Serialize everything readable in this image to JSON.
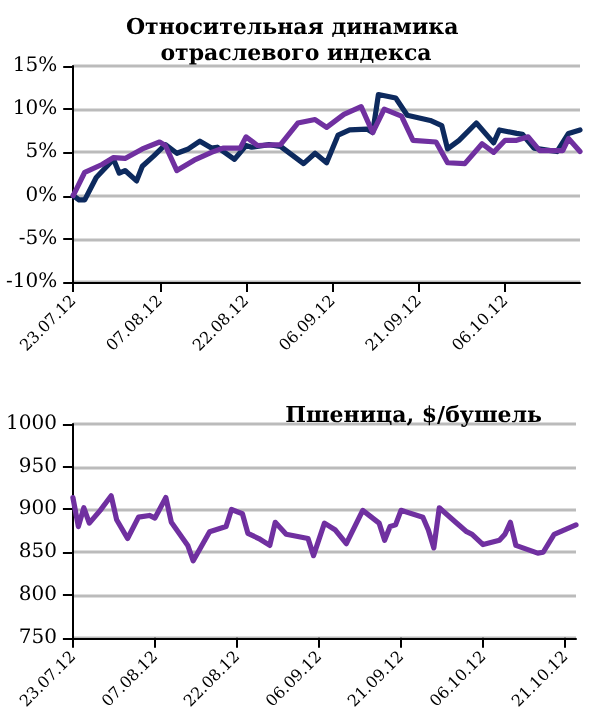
{
  "chart_data": [
    {
      "type": "line",
      "title": "Относительная динамика отраслевого индекса",
      "xlim": [
        "2012-07-23",
        "2012-10-19"
      ],
      "xticks": [
        {
          "value": "2012-07-23",
          "label": "23.07.12"
        },
        {
          "value": "2012-08-07",
          "label": "07.08.12"
        },
        {
          "value": "2012-08-22",
          "label": "22.08.12"
        },
        {
          "value": "2012-09-06",
          "label": "06.09.12"
        },
        {
          "value": "2012-09-21",
          "label": "21.09.12"
        },
        {
          "value": "2012-10-06",
          "label": "06.10.12"
        }
      ],
      "ylim": [
        -10,
        15
      ],
      "yticks": [
        {
          "value": -10,
          "label": "-10%"
        },
        {
          "value": -5,
          "label": "-5%"
        },
        {
          "value": 0,
          "label": "0%"
        },
        {
          "value": 5,
          "label": "5%"
        },
        {
          "value": 10,
          "label": "10%"
        },
        {
          "value": 15,
          "label": "15%"
        }
      ],
      "grid": "y",
      "marker": "none",
      "line_style": "solid",
      "series": [
        {
          "color": "#0d2a5e",
          "x": [
            "2012-07-23",
            "2012-07-24",
            "2012-07-25",
            "2012-07-27",
            "2012-07-30",
            "2012-07-31",
            "2012-08-01",
            "2012-08-03",
            "2012-08-04",
            "2012-08-06",
            "2012-08-08",
            "2012-08-10",
            "2012-08-12",
            "2012-08-14",
            "2012-08-16",
            "2012-08-17",
            "2012-08-20",
            "2012-08-22",
            "2012-08-23",
            "2012-08-26",
            "2012-08-28",
            "2012-09-01",
            "2012-09-03",
            "2012-09-05",
            "2012-09-07",
            "2012-09-09",
            "2012-09-12",
            "2012-09-13",
            "2012-09-14",
            "2012-09-17",
            "2012-09-19",
            "2012-09-23",
            "2012-09-25",
            "2012-09-26",
            "2012-09-28",
            "2012-10-01",
            "2012-10-04",
            "2012-10-05",
            "2012-10-08",
            "2012-10-09",
            "2012-10-11",
            "2012-10-13",
            "2012-10-15",
            "2012-10-17",
            "2012-10-19"
          ],
          "values": [
            0,
            -0.5,
            -0.5,
            2.1,
            4.2,
            2.6,
            2.9,
            1.7,
            3.4,
            4.6,
            5.9,
            4.9,
            5.4,
            6.3,
            5.5,
            5.6,
            4.2,
            5.8,
            5.6,
            5.9,
            5.7,
            3.7,
            4.9,
            3.8,
            7.0,
            7.6,
            7.7,
            7.3,
            11.7,
            11.3,
            9.3,
            8.7,
            8.1,
            5.4,
            6.4,
            8.4,
            6.1,
            7.6,
            7.2,
            7.1,
            5.5,
            5.3,
            5.1,
            7.2,
            7.6
          ]
        },
        {
          "color": "#7030a0",
          "x": [
            "2012-07-23",
            "2012-07-25",
            "2012-07-28",
            "2012-07-30",
            "2012-08-01",
            "2012-08-04",
            "2012-08-07",
            "2012-08-08",
            "2012-08-10",
            "2012-08-13",
            "2012-08-16",
            "2012-08-18",
            "2012-08-21",
            "2012-08-22",
            "2012-08-24",
            "2012-08-28",
            "2012-08-31",
            "2012-09-03",
            "2012-09-05",
            "2012-09-08",
            "2012-09-11",
            "2012-09-13",
            "2012-09-15",
            "2012-09-18",
            "2012-09-20",
            "2012-09-24",
            "2012-09-26",
            "2012-09-29",
            "2012-10-02",
            "2012-10-04",
            "2012-10-06",
            "2012-10-08",
            "2012-10-10",
            "2012-10-12",
            "2012-10-16",
            "2012-10-17",
            "2012-10-19"
          ],
          "values": [
            0,
            2.7,
            3.6,
            4.4,
            4.3,
            5.4,
            6.2,
            5.8,
            2.9,
            4.1,
            5.0,
            5.5,
            5.5,
            6.8,
            5.8,
            5.9,
            8.4,
            8.8,
            7.9,
            9.4,
            10.3,
            7.3,
            10.0,
            9.2,
            6.4,
            6.2,
            3.8,
            3.7,
            6.0,
            5.0,
            6.4,
            6.4,
            6.8,
            5.2,
            5.2,
            6.6,
            5.1
          ]
        }
      ]
    },
    {
      "type": "line",
      "title": "Пшеница, $/бушель",
      "xlim": [
        "2012-07-23",
        "2012-10-23"
      ],
      "xticks": [
        {
          "value": "2012-07-23",
          "label": "23.07.12"
        },
        {
          "value": "2012-08-07",
          "label": "07.08.12"
        },
        {
          "value": "2012-08-22",
          "label": "22.08.12"
        },
        {
          "value": "2012-09-06",
          "label": "06.09.12"
        },
        {
          "value": "2012-09-21",
          "label": "21.09.12"
        },
        {
          "value": "2012-10-06",
          "label": "06.10.12"
        },
        {
          "value": "2012-10-21",
          "label": "21.10.12"
        }
      ],
      "ylim": [
        750,
        1000
      ],
      "yticks": [
        750,
        800,
        850,
        900,
        950,
        1000
      ],
      "grid": "y",
      "marker": "none",
      "line_style": "solid",
      "series": [
        {
          "color": "#7030a0",
          "x": [
            "2012-07-23",
            "2012-07-24",
            "2012-07-25",
            "2012-07-26",
            "2012-07-28",
            "2012-07-30",
            "2012-07-31",
            "2012-08-02",
            "2012-08-04",
            "2012-08-06",
            "2012-08-07",
            "2012-08-09",
            "2012-08-10",
            "2012-08-13",
            "2012-08-14",
            "2012-08-17",
            "2012-08-20",
            "2012-08-21",
            "2012-08-23",
            "2012-08-24",
            "2012-08-26",
            "2012-08-28",
            "2012-08-29",
            "2012-08-31",
            "2012-09-04",
            "2012-09-05",
            "2012-09-07",
            "2012-09-09",
            "2012-09-11",
            "2012-09-14",
            "2012-09-17",
            "2012-09-18",
            "2012-09-19",
            "2012-09-20",
            "2012-09-21",
            "2012-09-25",
            "2012-09-26",
            "2012-09-27",
            "2012-09-28",
            "2012-10-01",
            "2012-10-03",
            "2012-10-04",
            "2012-10-06",
            "2012-10-09",
            "2012-10-10",
            "2012-10-11",
            "2012-10-12",
            "2012-10-16",
            "2012-10-17",
            "2012-10-19",
            "2012-10-23"
          ],
          "values": [
            914,
            880,
            902,
            884,
            899,
            916,
            888,
            866,
            891,
            893,
            890,
            914,
            885,
            858,
            840,
            874,
            880,
            900,
            895,
            872,
            866,
            858,
            885,
            871,
            866,
            846,
            884,
            876,
            860,
            899,
            884,
            864,
            880,
            882,
            899,
            891,
            876,
            855,
            902,
            885,
            874,
            871,
            859,
            864,
            871,
            885,
            858,
            849,
            850,
            871,
            882
          ]
        }
      ]
    }
  ]
}
